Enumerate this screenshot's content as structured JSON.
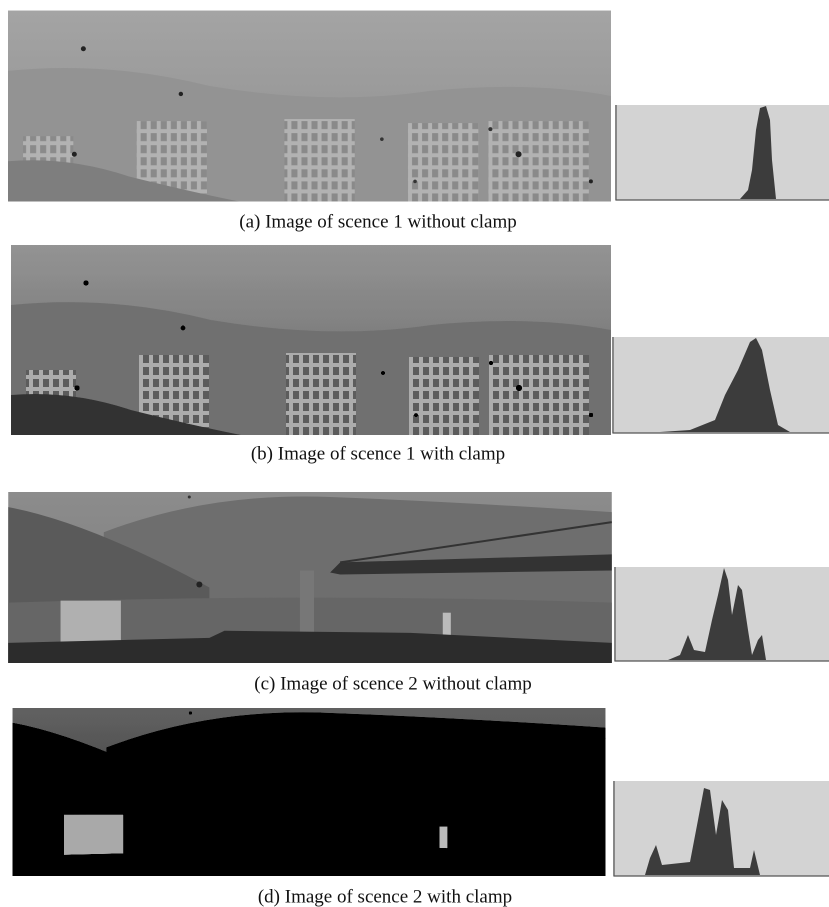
{
  "figure": {
    "panels": [
      {
        "caption": "(a) Image of scence 1 without clamp"
      },
      {
        "caption": "(b) Image of scence 1 with clamp"
      },
      {
        "caption": "(c) Image of scence 2 without clamp"
      },
      {
        "caption": "(d) Image of scence 2 with clamp"
      }
    ]
  }
}
